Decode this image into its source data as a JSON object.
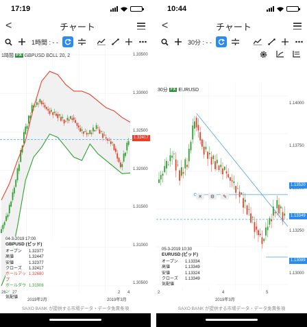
{
  "left": {
    "status": {
      "time": "17:19"
    },
    "nav": {
      "title": "チャート",
      "back": "<"
    },
    "toolbar": {
      "timeframe": "1時間 : - -"
    },
    "chart_label": {
      "tf": "1時間",
      "fx": "FX",
      "instrument": "GBPUSD",
      "indicator": "BOLL 20, 2"
    },
    "y_ticks": [
      "1.33500",
      "1.33000",
      "1.32500",
      "1.32000",
      "1.31500",
      "1.31000",
      "1.30500"
    ],
    "x_ticks": [
      "26",
      "27",
      "2",
      "4"
    ],
    "x_month_labels": [
      "2019年2月",
      "2019年3月"
    ],
    "price_tag": "1.32417",
    "info": {
      "datetime": "04-3-2019 17:00",
      "title": "GBPUSD (ビッド)",
      "rows": [
        {
          "k": "オープン",
          "v": "1.32377"
        },
        {
          "k": "高値",
          "v": "1.32447"
        },
        {
          "k": "安値",
          "v": "1.32377"
        },
        {
          "k": "クローズ",
          "v": "1.32417"
        },
        {
          "k": "ボールアップ",
          "v": "1.32680",
          "kind": "red"
        },
        {
          "k": "ボールダウン",
          "v": "1.31908",
          "kind": "green"
        }
      ],
      "extra": "気配値"
    },
    "footer": "SAXO BANK が提供する市場データ・データ免責条項"
  },
  "right": {
    "status": {
      "time": "10:44"
    },
    "nav": {
      "title": "チャート",
      "back": "<"
    },
    "toolbar": {
      "timeframe": "30分 : - -"
    },
    "chart_label": {
      "tf": "30分",
      "fx": "FX",
      "instrument": "EURUSD"
    },
    "y_ticks": [
      "1.14000",
      "1.13750",
      "1.13500",
      "1.13250",
      "1.13000"
    ],
    "x_ticks": [
      "2",
      "4",
      "5"
    ],
    "x_month_labels": [
      "2019年3月"
    ],
    "price_tags": [
      "1.13520",
      "1.13349",
      "1.13089"
    ],
    "info": {
      "datetime": "05-3-2019 10:30",
      "title": "EURUSD (ビッド)",
      "rows": [
        {
          "k": "オープン",
          "v": "1.13334"
        },
        {
          "k": "高値",
          "v": "1.13349"
        },
        {
          "k": "安値",
          "v": "1.13324"
        },
        {
          "k": "クローズ",
          "v": "1.13349"
        }
      ],
      "extra": "気配値"
    },
    "footer": "SAXO BANK が提供する市場データ・データ免責条項"
  },
  "colors": {
    "accent": "#2a8cf0",
    "bull": "#2ca02c",
    "bear": "#e8402b",
    "line_blue": "#4aa3e0"
  },
  "chart_data": [
    {
      "type": "line",
      "instrument": "GBPUSD",
      "timeframe": "1時間",
      "indicator": "BOLL 20, 2",
      "ylim": [
        1.302,
        1.337
      ],
      "series": [
        {
          "name": "ボールアップ",
          "values": [
            1.315,
            1.3175,
            1.321,
            1.324,
            1.329,
            1.333,
            1.3345,
            1.334,
            1.3325,
            1.3315,
            1.3315,
            1.331,
            1.33,
            1.329,
            1.3285,
            1.3275,
            1.3268
          ]
        },
        {
          "name": "ボールダウン",
          "values": [
            1.302,
            1.305,
            1.311,
            1.318,
            1.3215,
            1.323,
            1.325,
            1.3245,
            1.323,
            1.3215,
            1.321,
            1.3235,
            1.322,
            1.321,
            1.32,
            1.319,
            1.3191
          ]
        },
        {
          "name": "close",
          "values": [
            1.31,
            1.313,
            1.318,
            1.325,
            1.329,
            1.33,
            1.3285,
            1.328,
            1.327,
            1.3275,
            1.3255,
            1.325,
            1.326,
            1.3245,
            1.3235,
            1.32,
            1.3242
          ]
        }
      ],
      "last": 1.32417
    },
    {
      "type": "line",
      "instrument": "EURUSD",
      "timeframe": "30分",
      "ylim": [
        1.129,
        1.142
      ],
      "series": [
        {
          "name": "close",
          "values": [
            1.136,
            1.137,
            1.138,
            1.1365,
            1.1375,
            1.1405,
            1.1385,
            1.1378,
            1.1372,
            1.1368,
            1.136,
            1.1352,
            1.1342,
            1.133,
            1.132,
            1.1335,
            1.1345,
            1.1335
          ]
        }
      ],
      "horizontal_lines": [
        1.1352,
        1.13349,
        1.13089
      ],
      "last": 1.13349
    }
  ]
}
